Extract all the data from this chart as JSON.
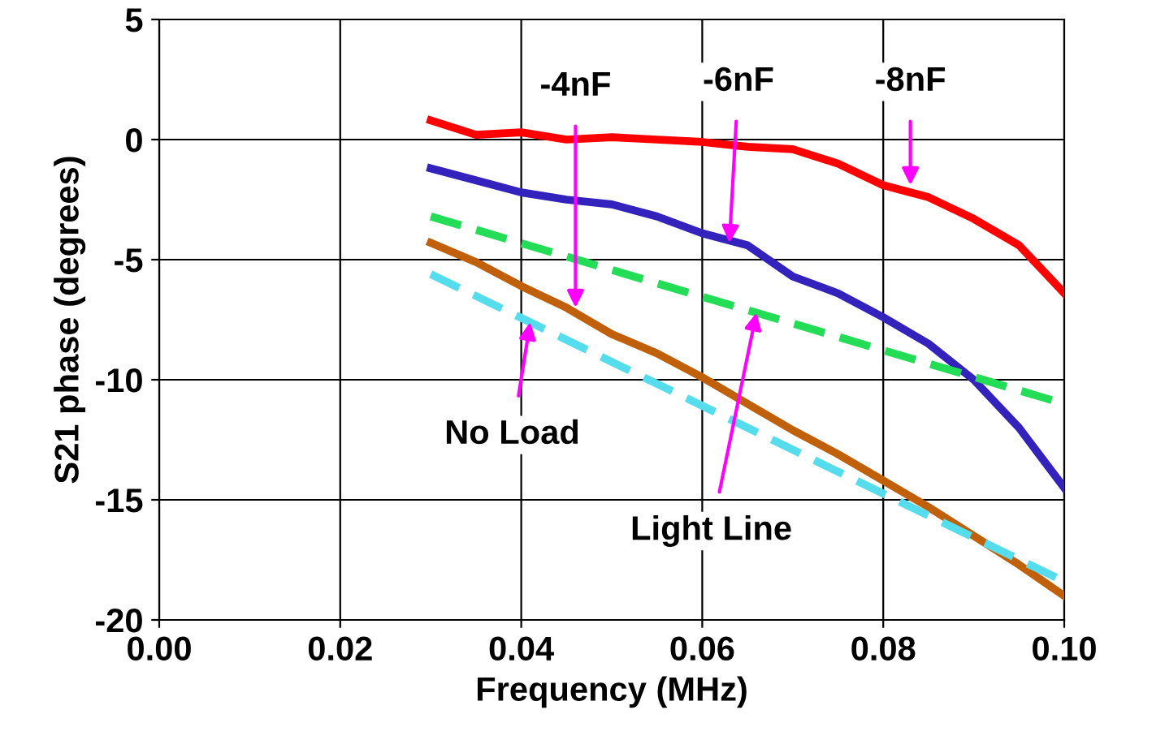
{
  "chart_data": {
    "type": "line",
    "xlabel": "Frequency (MHz)",
    "ylabel": "S21 phase (degrees)",
    "xlim": [
      0,
      0.1
    ],
    "ylim": [
      -20,
      5
    ],
    "xticks": [
      {
        "value": 0,
        "label": "0.00"
      },
      {
        "value": 0.02,
        "label": "0.02"
      },
      {
        "value": 0.04,
        "label": "0.04"
      },
      {
        "value": 0.06,
        "label": "0.06"
      },
      {
        "value": 0.08,
        "label": "0.08"
      },
      {
        "value": 0.1,
        "label": "0.10"
      }
    ],
    "yticks": [
      -20,
      -15,
      -10,
      -5,
      0,
      5
    ],
    "grid": true,
    "legend": false,
    "marker": "none",
    "series": [
      {
        "color": "#ff0000",
        "line_style": "solid",
        "x": [
          0.03,
          0.035,
          0.04,
          0.045,
          0.05,
          0.055,
          0.06,
          0.065,
          0.07,
          0.075,
          0.08,
          0.085,
          0.09,
          0.095,
          0.1
        ],
        "values": [
          0.8,
          0.2,
          0.3,
          0.0,
          0.1,
          0.0,
          -0.1,
          -0.3,
          -0.4,
          -1.0,
          -1.9,
          -2.4,
          -3.3,
          -4.4,
          -6.4
        ]
      },
      {
        "color": "#3322bb",
        "line_style": "solid",
        "x": [
          0.03,
          0.035,
          0.04,
          0.045,
          0.05,
          0.055,
          0.06,
          0.065,
          0.07,
          0.075,
          0.08,
          0.085,
          0.09,
          0.095,
          0.1
        ],
        "values": [
          -1.2,
          -1.7,
          -2.2,
          -2.5,
          -2.7,
          -3.2,
          -3.9,
          -4.4,
          -5.7,
          -6.4,
          -7.4,
          -8.5,
          -10.0,
          -12.0,
          -14.5
        ]
      },
      {
        "color": "#22dd55",
        "line_style": "dashed",
        "x": [
          0.03,
          0.1
        ],
        "values": [
          -3.2,
          -11.0
        ]
      },
      {
        "color": "#c0600a",
        "line_style": "solid",
        "x": [
          0.03,
          0.035,
          0.04,
          0.045,
          0.05,
          0.055,
          0.06,
          0.065,
          0.07,
          0.075,
          0.08,
          0.085,
          0.09,
          0.095,
          0.1
        ],
        "values": [
          -4.3,
          -5.1,
          -6.1,
          -7.0,
          -8.1,
          -8.9,
          -9.9,
          -11.0,
          -12.1,
          -13.1,
          -14.2,
          -15.3,
          -16.5,
          -17.7,
          -19.0
        ]
      },
      {
        "color": "#55ddee",
        "line_style": "dashed",
        "x": [
          0.03,
          0.1
        ],
        "values": [
          -5.6,
          -18.4
        ]
      }
    ],
    "annotations": [
      {
        "text": "-4nF",
        "x": 0.046,
        "y": -7.0
      },
      {
        "text": "-6nF",
        "x": 0.063,
        "y": -4.3
      },
      {
        "text": "-8nF",
        "x": 0.083,
        "y": -1.9
      },
      {
        "text": "No Load",
        "x": 0.041,
        "y": -7.6
      },
      {
        "text": "Light Line",
        "x": 0.066,
        "y": -7.2
      }
    ]
  }
}
